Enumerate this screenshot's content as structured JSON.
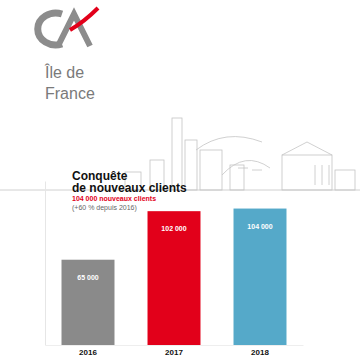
{
  "header": {
    "brand": "Île de\nFrance"
  },
  "chart_data": {
    "type": "bar",
    "title": "Conquête\nde nouveaux clients",
    "subtitle": "104 000 nouveaux clients",
    "annotation": "(+60 % depuis 2016)",
    "categories": [
      "2016",
      "2017",
      "2018"
    ],
    "values": [
      65000,
      102000,
      104000
    ],
    "value_labels": [
      "65 000",
      "102 000",
      "104 000"
    ],
    "colors": [
      "#8a8a8a",
      "#e2001a",
      "#55a9c9"
    ],
    "ylim": [
      0,
      125000
    ],
    "data_labels": true,
    "tick_labels": "x",
    "grid": false
  }
}
